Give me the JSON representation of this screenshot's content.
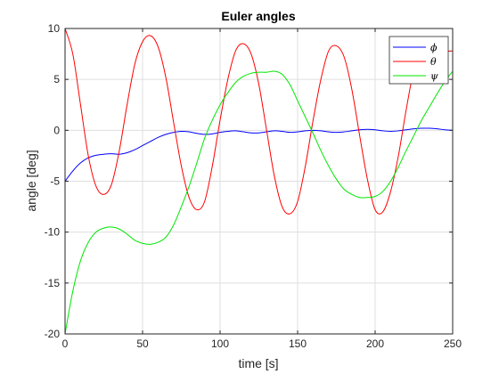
{
  "chart_data": {
    "type": "line",
    "title": "Euler angles",
    "xlabel": "time [s]",
    "ylabel": "angle [deg]",
    "xlim": [
      0,
      250
    ],
    "ylim": [
      -20,
      10
    ],
    "xticks": [
      0,
      50,
      100,
      150,
      200,
      250
    ],
    "yticks": [
      -20,
      -15,
      -10,
      -5,
      0,
      5,
      10
    ],
    "xtick_labels": [
      "0",
      "50",
      "100",
      "150",
      "200",
      "250"
    ],
    "ytick_labels": [
      "-20",
      "-15",
      "-10",
      "-5",
      "0",
      "5",
      "10"
    ],
    "grid": true,
    "legend_position": "top-right",
    "series": [
      {
        "name": "ϕ",
        "color": "#0000ff",
        "x": [
          0,
          5,
          10,
          15,
          20,
          25,
          30,
          35,
          40,
          45,
          50,
          55,
          60,
          65,
          70,
          75,
          80,
          85,
          90,
          95,
          100,
          105,
          110,
          115,
          120,
          125,
          130,
          135,
          140,
          145,
          150,
          155,
          160,
          165,
          170,
          175,
          180,
          185,
          190,
          195,
          200,
          205,
          210,
          215,
          220,
          225,
          230,
          235,
          240,
          245,
          250
        ],
        "y": [
          -5.0,
          -4.0,
          -3.2,
          -2.7,
          -2.45,
          -2.35,
          -2.3,
          -2.35,
          -2.2,
          -1.9,
          -1.5,
          -1.1,
          -0.7,
          -0.4,
          -0.2,
          -0.1,
          -0.15,
          -0.3,
          -0.4,
          -0.35,
          -0.2,
          -0.1,
          -0.05,
          -0.15,
          -0.25,
          -0.25,
          -0.15,
          -0.05,
          -0.1,
          -0.2,
          -0.15,
          -0.05,
          0.0,
          -0.05,
          -0.15,
          -0.2,
          -0.15,
          -0.05,
          0.05,
          0.1,
          0.05,
          -0.05,
          -0.1,
          -0.05,
          0.05,
          0.15,
          0.2,
          0.2,
          0.15,
          0.05,
          0.0
        ]
      },
      {
        "name": "θ",
        "color": "#ff0000",
        "x": [
          0,
          5,
          10,
          15,
          20,
          25,
          30,
          35,
          40,
          45,
          50,
          55,
          60,
          65,
          70,
          75,
          80,
          85,
          90,
          95,
          100,
          105,
          110,
          115,
          120,
          125,
          130,
          135,
          140,
          145,
          150,
          155,
          160,
          165,
          170,
          175,
          180,
          185,
          190,
          195,
          200,
          205,
          210,
          215,
          220,
          225,
          230,
          235,
          240,
          245,
          250
        ],
        "y": [
          10.0,
          7.5,
          2.5,
          -2.5,
          -5.5,
          -6.3,
          -5.3,
          -2.0,
          2.5,
          6.5,
          8.7,
          9.3,
          8.2,
          5.2,
          0.8,
          -3.5,
          -6.6,
          -7.8,
          -7.0,
          -3.5,
          1.0,
          5.0,
          7.8,
          8.5,
          7.5,
          4.5,
          0.0,
          -4.5,
          -7.5,
          -8.2,
          -7.0,
          -3.5,
          1.0,
          5.0,
          7.8,
          8.3,
          7.2,
          4.0,
          -0.5,
          -4.8,
          -7.8,
          -8.0,
          -6.0,
          -2.5,
          2.0,
          6.0,
          8.3,
          8.0,
          8.3,
          7.8,
          7.8
        ]
      },
      {
        "name": "ψ",
        "color": "#00e600",
        "x": [
          0,
          5,
          10,
          15,
          20,
          25,
          30,
          35,
          40,
          45,
          50,
          55,
          60,
          65,
          70,
          75,
          80,
          85,
          90,
          95,
          100,
          105,
          110,
          115,
          120,
          125,
          130,
          135,
          140,
          145,
          150,
          155,
          160,
          165,
          170,
          175,
          180,
          185,
          190,
          195,
          200,
          205,
          210,
          215,
          220,
          225,
          230,
          235,
          240,
          245,
          250
        ],
        "y": [
          -20.0,
          -15.8,
          -12.8,
          -11.0,
          -10.0,
          -9.6,
          -9.5,
          -9.7,
          -10.2,
          -10.8,
          -11.1,
          -11.2,
          -11.0,
          -10.5,
          -9.3,
          -7.5,
          -5.5,
          -3.2,
          -0.8,
          1.0,
          2.5,
          3.7,
          4.7,
          5.3,
          5.6,
          5.7,
          5.7,
          5.8,
          5.5,
          4.5,
          2.9,
          1.3,
          -0.3,
          -2.0,
          -3.5,
          -4.8,
          -5.8,
          -6.3,
          -6.6,
          -6.6,
          -6.5,
          -6.0,
          -5.0,
          -3.6,
          -2.0,
          -0.5,
          1.0,
          2.3,
          3.6,
          4.8,
          5.8
        ]
      }
    ]
  }
}
